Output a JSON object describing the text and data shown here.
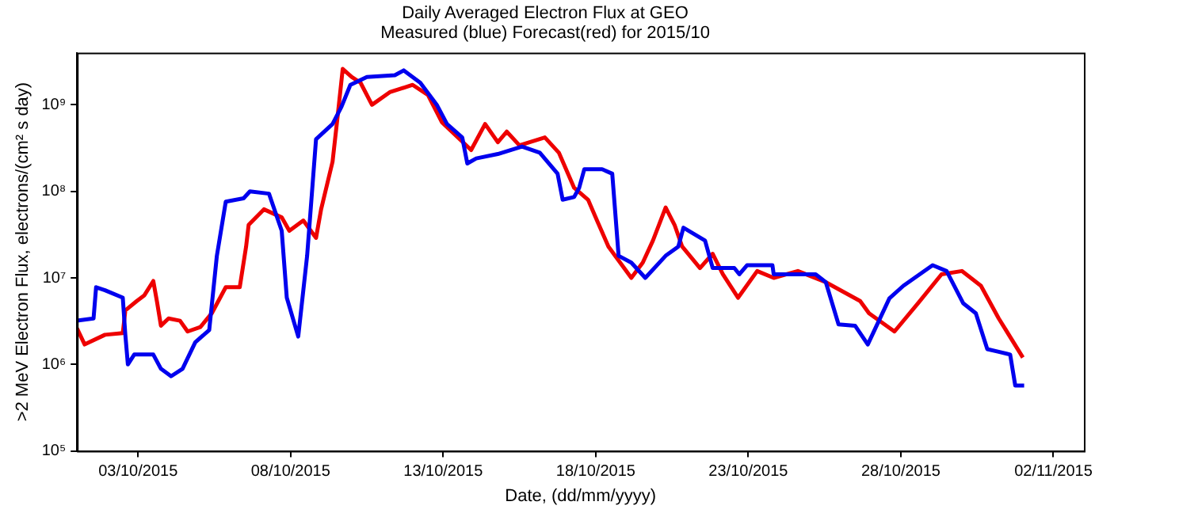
{
  "chart_data": {
    "type": "line",
    "title": "Daily Averaged Electron Flux at GEO",
    "subtitle": "Measured (blue) Forecast(red) for 2015/10",
    "xlabel": "Date, (dd/mm/yyyy)",
    "ylabel": ">2 MeV Electron Flux, electrons/(cm² s day)",
    "log": "y",
    "grid": false,
    "legend": false,
    "marker": "none",
    "line_style": "solid",
    "xlim": [
      "2015-10-01",
      "2015-11-03"
    ],
    "xticks": [
      {
        "value": "2015-10-03",
        "label": "03/10/2015"
      },
      {
        "value": "2015-10-08",
        "label": "08/10/2015"
      },
      {
        "value": "2015-10-13",
        "label": "13/10/2015"
      },
      {
        "value": "2015-10-18",
        "label": "18/10/2015"
      },
      {
        "value": "2015-10-23",
        "label": "23/10/2015"
      },
      {
        "value": "2015-10-28",
        "label": "28/10/2015"
      },
      {
        "value": "2015-11-02",
        "label": "02/11/2015"
      }
    ],
    "ylim": [
      100000,
      4000000000
    ],
    "yticks": [
      {
        "value": 100000,
        "label": "10⁵"
      },
      {
        "value": 1000000,
        "label": "10⁶"
      },
      {
        "value": 10000000,
        "label": "10⁷"
      },
      {
        "value": 100000000,
        "label": "10⁸"
      },
      {
        "value": 1000000000,
        "label": "10⁹"
      }
    ],
    "series": [
      {
        "color": "#0000ee",
        "x": [
          "2015-10-01T00:00",
          "2015-10-01T13:00",
          "2015-10-01T15:00",
          "2015-10-01T22:00",
          "2015-10-02T12:00",
          "2015-10-02T14:00",
          "2015-10-02T16:00",
          "2015-10-02T21:00",
          "2015-10-03T12:00",
          "2015-10-03T18:00",
          "2015-10-04T02:00",
          "2015-10-04T11:00",
          "2015-10-04T21:00",
          "2015-10-05T08:00",
          "2015-10-05T14:00",
          "2015-10-05T21:00",
          "2015-10-06T11:00",
          "2015-10-06T16:00",
          "2015-10-07T07:00",
          "2015-10-07T17:00",
          "2015-10-07T21:00",
          "2015-10-08T06:00",
          "2015-10-08T13:00",
          "2015-10-08T20:00",
          "2015-10-09T09:00",
          "2015-10-09T16:00",
          "2015-10-09T23:00",
          "2015-10-10T12:00",
          "2015-10-11T10:00",
          "2015-10-11T17:00",
          "2015-10-12T06:00",
          "2015-10-12T19:00",
          "2015-10-13T03:00",
          "2015-10-13T15:00",
          "2015-10-13T19:00",
          "2015-10-14T02:00",
          "2015-10-14T19:00",
          "2015-10-15T14:00",
          "2015-10-16T04:00",
          "2015-10-16T18:00",
          "2015-10-16T22:00",
          "2015-10-17T07:00",
          "2015-10-17T11:00",
          "2015-10-17T15:00",
          "2015-10-18T05:00",
          "2015-10-18T13:00",
          "2015-10-18T18:00",
          "2015-10-19T04:00",
          "2015-10-19T15:00",
          "2015-10-20T07:00",
          "2015-10-20T17:00",
          "2015-10-20T21:00",
          "2015-10-21T14:00",
          "2015-10-21T20:00",
          "2015-10-22T13:00",
          "2015-10-22T17:00",
          "2015-10-22T23:00",
          "2015-10-23T19:00",
          "2015-10-23T20:00",
          "2015-10-25T05:00",
          "2015-10-25T13:00",
          "2015-10-25T23:00",
          "2015-10-26T12:00",
          "2015-10-26T22:00",
          "2015-10-27T15:00",
          "2015-10-28T02:00",
          "2015-10-29T01:00",
          "2015-10-29T12:00",
          "2015-10-30T01:00",
          "2015-10-30T11:00",
          "2015-10-30T20:00",
          "2015-10-31T05:00",
          "2015-10-31T14:00",
          "2015-10-31T18:00",
          "2015-11-01T01:00"
        ],
        "values": [
          3200000,
          3400000,
          7800000,
          7200000,
          5900000,
          2200000,
          1000000,
          1300000,
          1300000,
          890000,
          730000,
          890000,
          1800000,
          2500000,
          18000000,
          76000000,
          83000000,
          100000000,
          94000000,
          35000000,
          5900000,
          2100000,
          18000000,
          400000000,
          600000000,
          950000000,
          1700000000,
          2100000000,
          2200000000,
          2500000000,
          1800000000,
          1000000000,
          600000000,
          420000000,
          210000000,
          240000000,
          270000000,
          330000000,
          280000000,
          160000000,
          80000000,
          86000000,
          110000000,
          180000000,
          180000000,
          160000000,
          18000000,
          15000000,
          10000000,
          18000000,
          23000000,
          38000000,
          27000000,
          13000000,
          13000000,
          11000000,
          14000000,
          14000000,
          11000000,
          11000000,
          8900000,
          2900000,
          2800000,
          1700000,
          5800000,
          8100000,
          14000000,
          12000000,
          5100000,
          3900000,
          1500000,
          1400000,
          1300000,
          570000,
          570000
        ]
      },
      {
        "color": "#ee0000",
        "x": [
          "2015-10-01T00:00",
          "2015-10-01T06:00",
          "2015-10-01T22:00",
          "2015-10-02T12:00",
          "2015-10-02T14:00",
          "2015-10-02T23:00",
          "2015-10-03T05:00",
          "2015-10-03T12:00",
          "2015-10-03T15:00",
          "2015-10-03T18:00",
          "2015-10-04T00:00",
          "2015-10-04T09:00",
          "2015-10-04T15:00",
          "2015-10-05T01:00",
          "2015-10-05T10:00",
          "2015-10-05T21:00",
          "2015-10-06T08:00",
          "2015-10-06T13:00",
          "2015-10-06T15:00",
          "2015-10-07T03:00",
          "2015-10-07T17:00",
          "2015-10-07T23:00",
          "2015-10-08T10:00",
          "2015-10-08T20:00",
          "2015-10-09T00:00",
          "2015-10-09T09:00",
          "2015-10-09T13:00",
          "2015-10-09T17:00",
          "2015-10-10T00:00",
          "2015-10-10T07:00",
          "2015-10-10T16:00",
          "2015-10-11T06:00",
          "2015-10-12T00:00",
          "2015-10-12T12:00",
          "2015-10-12T23:00",
          "2015-10-13T22:00",
          "2015-10-14T09:00",
          "2015-10-14T19:00",
          "2015-10-15T02:00",
          "2015-10-15T12:00",
          "2015-10-16T08:00",
          "2015-10-16T19:00",
          "2015-10-17T07:00",
          "2015-10-17T18:00",
          "2015-10-18T01:00",
          "2015-10-18T10:00",
          "2015-10-19T04:00",
          "2015-10-19T13:00",
          "2015-10-19T21:00",
          "2015-10-20T07:00",
          "2015-10-20T14:00",
          "2015-10-20T20:00",
          "2015-10-21T10:00",
          "2015-10-21T20:00",
          "2015-10-22T04:00",
          "2015-10-22T16:00",
          "2015-10-23T07:00",
          "2015-10-23T20:00",
          "2015-10-24T15:00",
          "2015-10-25T13:00",
          "2015-10-26T16:00",
          "2015-10-26T23:00",
          "2015-10-27T19:00",
          "2015-10-28T14:00",
          "2015-10-29T08:00",
          "2015-10-30T00:00",
          "2015-10-30T15:00",
          "2015-10-31T05:00",
          "2015-11-01T00:00"
        ],
        "values": [
          2600000,
          1700000,
          2200000,
          2300000,
          4200000,
          5400000,
          6300000,
          9200000,
          5200000,
          2800000,
          3400000,
          3200000,
          2400000,
          2700000,
          3900000,
          7800000,
          7800000,
          23000000,
          41000000,
          62000000,
          50000000,
          35000000,
          46000000,
          29000000,
          62000000,
          220000000,
          740000000,
          2600000000,
          2100000000,
          1800000000,
          1000000000,
          1400000000,
          1700000000,
          1300000000,
          630000000,
          300000000,
          600000000,
          370000000,
          490000000,
          340000000,
          420000000,
          280000000,
          110000000,
          80000000,
          46000000,
          23000000,
          10000000,
          15000000,
          27000000,
          65000000,
          41000000,
          23000000,
          13000000,
          19000000,
          11000000,
          5900000,
          12000000,
          10000000,
          12000000,
          8900000,
          5400000,
          3900000,
          2400000,
          5200000,
          11000000,
          12000000,
          8100000,
          3400000,
          1200000
        ]
      }
    ]
  }
}
